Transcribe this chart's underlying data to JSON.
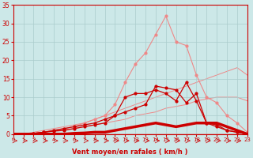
{
  "x": [
    0,
    1,
    2,
    3,
    4,
    5,
    6,
    7,
    8,
    9,
    10,
    11,
    12,
    13,
    14,
    15,
    16,
    17,
    18,
    19,
    20,
    21,
    22,
    23
  ],
  "line_pink_curve": [
    0,
    0,
    0.2,
    0.5,
    1,
    1.5,
    2,
    3,
    4,
    5,
    8,
    14,
    19,
    22,
    27,
    32,
    25,
    24,
    16,
    10,
    8.5,
    5,
    3,
    0.5
  ],
  "line_pink_diag1": [
    0,
    0,
    0.5,
    1,
    1.5,
    2,
    2.5,
    3,
    4,
    5,
    6,
    7,
    8,
    9,
    10,
    11,
    12,
    13,
    14,
    15,
    16,
    17,
    18,
    16
  ],
  "line_pink_diag2": [
    0,
    0,
    0.2,
    0.5,
    1,
    1.2,
    1.5,
    2,
    2.5,
    3,
    3.5,
    4,
    5,
    5.5,
    6,
    7,
    7.5,
    8,
    9,
    9.5,
    10,
    10,
    10,
    9
  ],
  "line_dark_wavy": [
    0,
    0,
    0.2,
    0.5,
    0.8,
    1,
    1.5,
    2,
    2.5,
    3,
    5,
    10,
    11,
    11,
    12,
    11,
    9,
    14,
    9,
    3,
    2,
    1,
    0.5,
    0
  ],
  "line_dark_wavy2": [
    0,
    0,
    0.2,
    0.5,
    1,
    1.5,
    2,
    2.5,
    3,
    4,
    5,
    6,
    7,
    8,
    13,
    12.5,
    12,
    8.5,
    11,
    3,
    2.5,
    1,
    0.5,
    0
  ],
  "line_thick_flat": [
    0,
    0,
    0,
    0,
    0,
    0,
    0.2,
    0.3,
    0.5,
    0.5,
    1,
    1.5,
    2,
    2.5,
    3,
    2.5,
    2,
    2.5,
    3,
    3,
    3,
    2,
    1,
    0
  ],
  "xlim": [
    0,
    23
  ],
  "ylim": [
    0,
    35
  ],
  "yticks": [
    0,
    5,
    10,
    15,
    20,
    25,
    30,
    35
  ],
  "xticks": [
    0,
    1,
    2,
    3,
    4,
    5,
    6,
    7,
    8,
    9,
    10,
    11,
    12,
    13,
    14,
    15,
    16,
    17,
    18,
    19,
    20,
    21,
    22,
    23
  ],
  "xlabel": "Vent moyen/en rafales ( km/h )",
  "bg_color": "#cce8e8",
  "grid_color": "#aacccc",
  "dark_red": "#cc0000",
  "light_pink": "#ee8888"
}
